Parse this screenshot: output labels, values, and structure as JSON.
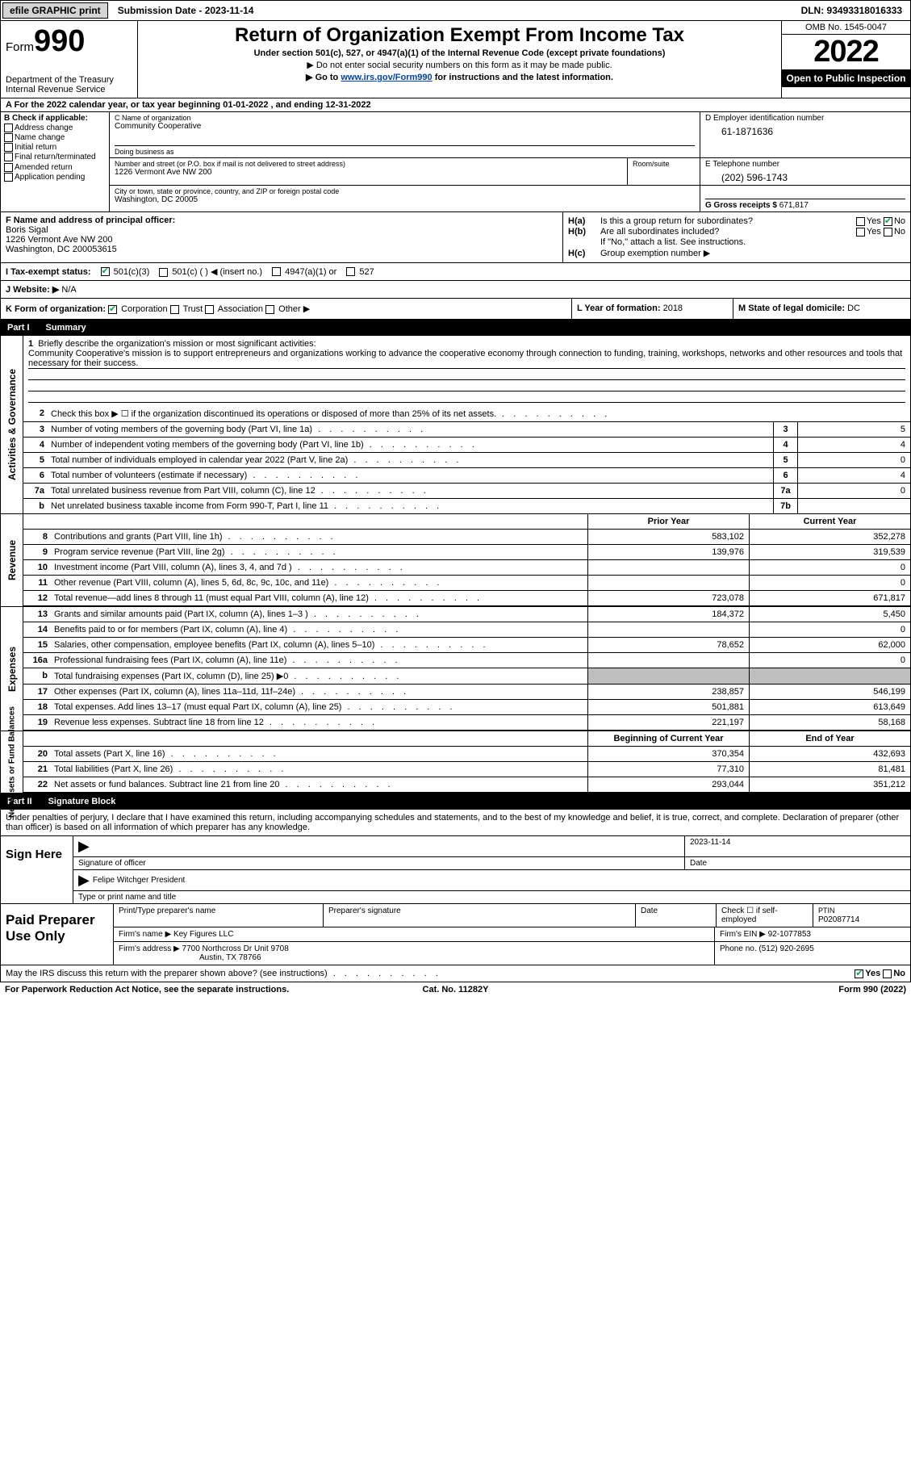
{
  "colors": {
    "link": "#0042b2",
    "shade": "#bfbfbf",
    "black": "#000000",
    "white": "#ffffff",
    "check": "#00aa55"
  },
  "topbar": {
    "efile": "efile GRAPHIC print",
    "submission": "Submission Date - 2023-11-14",
    "dln": "DLN: 93493318016333"
  },
  "header": {
    "form_label": "Form",
    "form_num": "990",
    "dept": "Department of the Treasury",
    "irs": "Internal Revenue Service",
    "title": "Return of Organization Exempt From Income Tax",
    "subtitle": "Under section 501(c), 527, or 4947(a)(1) of the Internal Revenue Code (except private foundations)",
    "note1": "▶ Do not enter social security numbers on this form as it may be made public.",
    "note2_pre": "▶ Go to ",
    "note2_link": "www.irs.gov/Form990",
    "note2_post": " for instructions and the latest information.",
    "omb": "OMB No. 1545-0047",
    "year": "2022",
    "open": "Open to Public Inspection"
  },
  "row_a": {
    "text_pre": "A For the 2022 calendar year, or tax year beginning ",
    "begin": "01-01-2022",
    "mid": " , and ending ",
    "end": "12-31-2022"
  },
  "col_b": {
    "header": "B Check if applicable:",
    "items": [
      "Address change",
      "Name change",
      "Initial return",
      "Final return/terminated",
      "Amended return",
      "Application pending"
    ]
  },
  "col_c": {
    "name_label": "C Name of organization",
    "name": "Community Cooperative",
    "dba_label": "Doing business as",
    "dba": "",
    "addr_label": "Number and street (or P.O. box if mail is not delivered to street address)",
    "room_label": "Room/suite",
    "addr": "1226 Vermont Ave NW 200",
    "city_label": "City or town, state or province, country, and ZIP or foreign postal code",
    "city": "Washington, DC  20005"
  },
  "col_d": {
    "ein_label": "D Employer identification number",
    "ein": "61-1871636",
    "tel_label": "E Telephone number",
    "tel": "(202) 596-1743",
    "gross_label": "G Gross receipts $",
    "gross": "671,817"
  },
  "col_f": {
    "label": "F  Name and address of principal officer:",
    "name": "Boris Sigal",
    "addr1": "1226 Vermont Ave NW 200",
    "addr2": "Washington, DC  200053615"
  },
  "col_h": {
    "ha_label": "H(a)",
    "ha_text": "Is this a group return for subordinates?",
    "ha_yes": false,
    "ha_no": true,
    "hb_label": "H(b)",
    "hb_text": "Are all subordinates included?",
    "hb_note": "If \"No,\" attach a list. See instructions.",
    "hc_label": "H(c)",
    "hc_text": "Group exemption number ▶"
  },
  "row_i": {
    "label": "I   Tax-exempt status:",
    "opts": [
      "501(c)(3)",
      "501(c) (  ) ◀ (insert no.)",
      "4947(a)(1) or",
      "527"
    ],
    "checked": 0
  },
  "row_j": {
    "label": "J   Website: ▶",
    "value": "N/A"
  },
  "row_k": {
    "label": "K Form of organization:",
    "opts": [
      "Corporation",
      "Trust",
      "Association",
      "Other ▶"
    ],
    "checked": 0,
    "l_label": "L Year of formation:",
    "l_val": "2018",
    "m_label": "M State of legal domicile:",
    "m_val": "DC"
  },
  "part1": {
    "num": "Part I",
    "title": "Summary"
  },
  "mission": {
    "num": "1",
    "label": "Briefly describe the organization's mission or most significant activities:",
    "text": "Community Cooperative's mission is to support entrepreneurs and organizations working to advance the cooperative economy through connection to funding, training, workshops, networks and other resources and tools that necessary for their success."
  },
  "gov_lines": [
    {
      "n": "2",
      "d": "Check this box ▶ ☐  if the organization discontinued its operations or disposed of more than 25% of its net assets.",
      "box": "",
      "val": ""
    },
    {
      "n": "3",
      "d": "Number of voting members of the governing body (Part VI, line 1a)",
      "box": "3",
      "val": "5"
    },
    {
      "n": "4",
      "d": "Number of independent voting members of the governing body (Part VI, line 1b)",
      "box": "4",
      "val": "4"
    },
    {
      "n": "5",
      "d": "Total number of individuals employed in calendar year 2022 (Part V, line 2a)",
      "box": "5",
      "val": "0"
    },
    {
      "n": "6",
      "d": "Total number of volunteers (estimate if necessary)",
      "box": "6",
      "val": "4"
    },
    {
      "n": "7a",
      "d": "Total unrelated business revenue from Part VIII, column (C), line 12",
      "box": "7a",
      "val": "0"
    },
    {
      "n": "b",
      "d": "Net unrelated business taxable income from Form 990-T, Part I, line 11",
      "box": "7b",
      "val": ""
    }
  ],
  "fin_hdr": {
    "prior": "Prior Year",
    "current": "Current Year"
  },
  "revenue": {
    "label": "Revenue",
    "lines": [
      {
        "n": "8",
        "d": "Contributions and grants (Part VIII, line 1h)",
        "pv": "583,102",
        "cv": "352,278"
      },
      {
        "n": "9",
        "d": "Program service revenue (Part VIII, line 2g)",
        "pv": "139,976",
        "cv": "319,539"
      },
      {
        "n": "10",
        "d": "Investment income (Part VIII, column (A), lines 3, 4, and 7d )",
        "pv": "",
        "cv": "0"
      },
      {
        "n": "11",
        "d": "Other revenue (Part VIII, column (A), lines 5, 6d, 8c, 9c, 10c, and 11e)",
        "pv": "",
        "cv": "0"
      },
      {
        "n": "12",
        "d": "Total revenue—add lines 8 through 11 (must equal Part VIII, column (A), line 12)",
        "pv": "723,078",
        "cv": "671,817"
      }
    ]
  },
  "expenses": {
    "label": "Expenses",
    "lines": [
      {
        "n": "13",
        "d": "Grants and similar amounts paid (Part IX, column (A), lines 1–3 )",
        "pv": "184,372",
        "cv": "5,450"
      },
      {
        "n": "14",
        "d": "Benefits paid to or for members (Part IX, column (A), line 4)",
        "pv": "",
        "cv": "0"
      },
      {
        "n": "15",
        "d": "Salaries, other compensation, employee benefits (Part IX, column (A), lines 5–10)",
        "pv": "78,652",
        "cv": "62,000"
      },
      {
        "n": "16a",
        "d": "Professional fundraising fees (Part IX, column (A), line 11e)",
        "pv": "",
        "cv": "0"
      },
      {
        "n": "b",
        "d": "Total fundraising expenses (Part IX, column (D), line 25) ▶0",
        "pv": "shade",
        "cv": "shade"
      },
      {
        "n": "17",
        "d": "Other expenses (Part IX, column (A), lines 11a–11d, 11f–24e)",
        "pv": "238,857",
        "cv": "546,199"
      },
      {
        "n": "18",
        "d": "Total expenses. Add lines 13–17 (must equal Part IX, column (A), line 25)",
        "pv": "501,881",
        "cv": "613,649"
      },
      {
        "n": "19",
        "d": "Revenue less expenses. Subtract line 18 from line 12",
        "pv": "221,197",
        "cv": "58,168"
      }
    ]
  },
  "netassets": {
    "label": "Net Assets or Fund Balances",
    "hdr_prior": "Beginning of Current Year",
    "hdr_current": "End of Year",
    "lines": [
      {
        "n": "20",
        "d": "Total assets (Part X, line 16)",
        "pv": "370,354",
        "cv": "432,693"
      },
      {
        "n": "21",
        "d": "Total liabilities (Part X, line 26)",
        "pv": "77,310",
        "cv": "81,481"
      },
      {
        "n": "22",
        "d": "Net assets or fund balances. Subtract line 21 from line 20",
        "pv": "293,044",
        "cv": "351,212"
      }
    ]
  },
  "gov_label": "Activities & Governance",
  "part2": {
    "num": "Part II",
    "title": "Signature Block"
  },
  "sig": {
    "decl": "Under penalties of perjury, I declare that I have examined this return, including accompanying schedules and statements, and to the best of my knowledge and belief, it is true, correct, and complete. Declaration of preparer (other than officer) is based on all information of which preparer has any knowledge.",
    "sign_here": "Sign Here",
    "sig_officer": "Signature of officer",
    "date": "2023-11-14",
    "date_label": "Date",
    "name": "Felipe Witchger  President",
    "name_label": "Type or print name and title"
  },
  "prep": {
    "label": "Paid Preparer Use Only",
    "h1": "Print/Type preparer's name",
    "h2": "Preparer's signature",
    "h3": "Date",
    "h4": "Check ☐ if self-employed",
    "h5_label": "PTIN",
    "h5": "P02087714",
    "firm_label": "Firm's name    ▶",
    "firm": "Key Figures LLC",
    "ein_label": "Firm's EIN ▶",
    "ein": "92-1077853",
    "addr_label": "Firm's address ▶",
    "addr1": "7700 Northcross Dr Unit 9708",
    "addr2": "Austin, TX  78766",
    "phone_label": "Phone no.",
    "phone": "(512) 920-2695"
  },
  "footer_q": {
    "text": "May the IRS discuss this return with the preparer shown above? (see instructions)",
    "yes": true,
    "no": false
  },
  "footer": {
    "left": "For Paperwork Reduction Act Notice, see the separate instructions.",
    "mid": "Cat. No. 11282Y",
    "right": "Form 990 (2022)"
  }
}
